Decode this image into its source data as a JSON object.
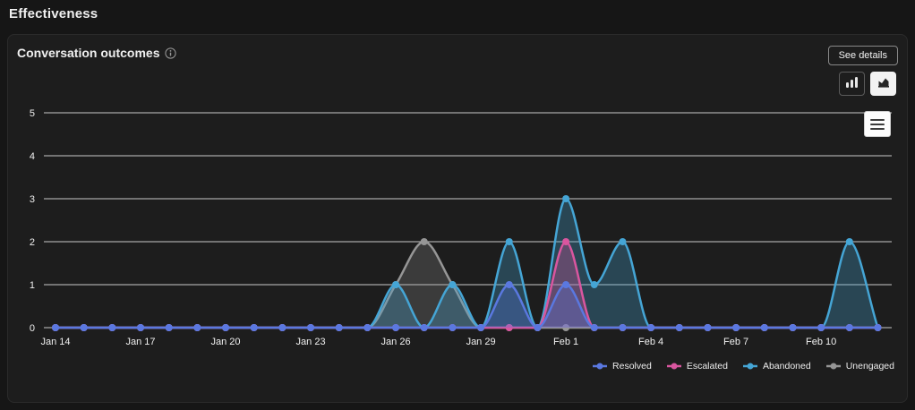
{
  "page": {
    "title": "Effectiveness"
  },
  "card": {
    "title": "Conversation outcomes",
    "see_details_label": "See details",
    "icons": {
      "title_info": "info-circle-icon",
      "type_toggle_bar": "bar-chart-icon",
      "type_toggle_area": "area-chart-icon",
      "chart_menu": "hamburger-menu-icon"
    },
    "chart_type_buttons": [
      {
        "name": "bar-chart",
        "selected": false
      },
      {
        "name": "area-chart",
        "selected": true
      }
    ]
  },
  "colors": {
    "page_bg": "#161616",
    "card_bg": "#1d1d1d",
    "grid_line": "#c9c9c9",
    "axis_label": "#f0f0f0",
    "legend_label": "#ededed"
  },
  "chart_data": {
    "type": "area",
    "title": "Conversation outcomes",
    "x": [
      "Jan 14",
      "Jan 15",
      "Jan 16",
      "Jan 17",
      "Jan 18",
      "Jan 19",
      "Jan 20",
      "Jan 21",
      "Jan 22",
      "Jan 23",
      "Jan 24",
      "Jan 25",
      "Jan 26",
      "Jan 27",
      "Jan 28",
      "Jan 29",
      "Jan 30",
      "Jan 31",
      "Feb 1",
      "Feb 2",
      "Feb 3",
      "Feb 4",
      "Feb 5",
      "Feb 6",
      "Feb 7",
      "Feb 8",
      "Feb 9",
      "Feb 10",
      "Feb 11",
      "Feb 12"
    ],
    "x_tick_every": 3,
    "x_tick_labels": [
      "Jan 14",
      "Jan 17",
      "Jan 20",
      "Jan 23",
      "Jan 26",
      "Jan 29",
      "Feb 1",
      "Feb 4",
      "Feb 7",
      "Feb 10"
    ],
    "y_ticks": [
      0,
      1,
      2,
      3,
      4,
      5
    ],
    "ylim": [
      0,
      5
    ],
    "grid": true,
    "legend_position": "bottom-right",
    "series": [
      {
        "name": "Resolved",
        "color": "#5A78E0",
        "fill": "rgba(90,120,224,0.32)",
        "values": [
          0,
          0,
          0,
          0,
          0,
          0,
          0,
          0,
          0,
          0,
          0,
          0,
          0,
          0,
          0,
          0,
          1,
          0,
          1,
          0,
          0,
          0,
          0,
          0,
          0,
          0,
          0,
          0,
          0,
          0
        ]
      },
      {
        "name": "Escalated",
        "color": "#D9569F",
        "fill": "rgba(217,86,159,0.32)",
        "values": [
          0,
          0,
          0,
          0,
          0,
          0,
          0,
          0,
          0,
          0,
          0,
          0,
          0,
          0,
          0,
          0,
          0,
          0,
          2,
          0,
          0,
          0,
          0,
          0,
          0,
          0,
          0,
          0,
          0,
          0
        ]
      },
      {
        "name": "Abandoned",
        "color": "#45A5D5",
        "fill": "rgba(69,165,213,0.30)",
        "values": [
          0,
          0,
          0,
          0,
          0,
          0,
          0,
          0,
          0,
          0,
          0,
          0,
          1,
          0,
          1,
          0,
          2,
          0,
          3,
          1,
          2,
          0,
          0,
          0,
          0,
          0,
          0,
          0,
          2,
          0
        ]
      },
      {
        "name": "Unengaged",
        "color": "#969696",
        "fill": "rgba(150,150,150,0.25)",
        "values": [
          0,
          0,
          0,
          0,
          0,
          0,
          0,
          0,
          0,
          0,
          0,
          0,
          1,
          2,
          1,
          0,
          0,
          0,
          0,
          0,
          0,
          0,
          0,
          0,
          0,
          0,
          0,
          0,
          0,
          0
        ]
      }
    ]
  }
}
